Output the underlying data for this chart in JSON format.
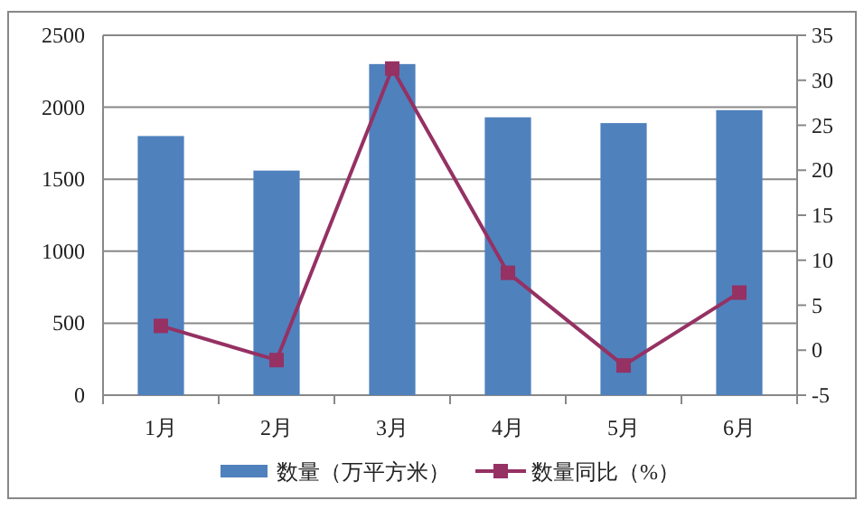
{
  "chart_data": {
    "type": "bar",
    "categories": [
      "1月",
      "2月",
      "3月",
      "4月",
      "5月",
      "6月"
    ],
    "series": [
      {
        "name": "数量（万平方米）",
        "color": "#4f81bd",
        "values": [
          1800,
          1560,
          2300,
          1930,
          1890,
          1980
        ]
      },
      {
        "name": "数量同比（%）",
        "type": "line",
        "axis": "y2",
        "color": "#953163",
        "values": [
          2.7,
          -1.1,
          31.3,
          8.6,
          -1.7,
          6.4
        ]
      }
    ],
    "ylim": [
      0,
      2500
    ],
    "yticks": [
      0,
      500,
      1000,
      1500,
      2000,
      2500
    ],
    "y2lim": [
      -5,
      35
    ],
    "y2ticks": [
      -5,
      0,
      5,
      10,
      15,
      20,
      25,
      30,
      35
    ],
    "grid": "y",
    "legend": "bottom",
    "marker": "square",
    "line_style": "solid"
  }
}
